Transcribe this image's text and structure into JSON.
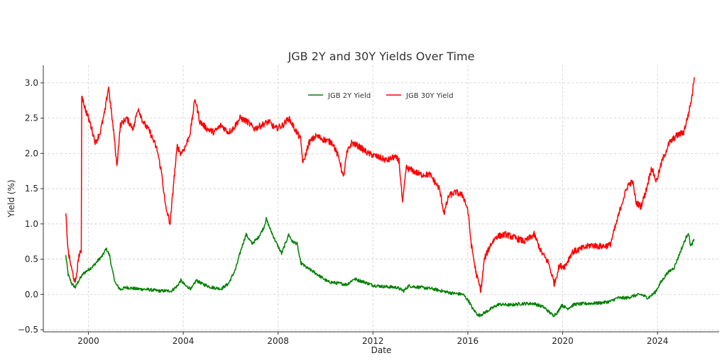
{
  "chart_data": {
    "type": "line",
    "title": "JGB 2Y and 30Y Yields Over Time",
    "xlabel": "Date",
    "ylabel": "Yield (%)",
    "xlim": [
      1998.1,
      2026.6
    ],
    "ylim": [
      -0.53,
      3.25
    ],
    "x_ticks": [
      2000,
      2004,
      2008,
      2012,
      2016,
      2020,
      2024
    ],
    "x_tick_labels": [
      "2000",
      "2004",
      "2008",
      "2012",
      "2016",
      "2020",
      "2024"
    ],
    "y_ticks": [
      -0.5,
      0.0,
      0.5,
      1.0,
      1.5,
      2.0,
      2.5,
      3.0
    ],
    "y_tick_labels": [
      "−0.5",
      "0.0",
      "0.5",
      "1.0",
      "1.5",
      "2.0",
      "2.5",
      "3.0"
    ],
    "grid": true,
    "legend_position": "top-center",
    "series": [
      {
        "name": "JGB 2Y Yield",
        "color": "#008000",
        "points": [
          [
            1999.05,
            0.55
          ],
          [
            1999.15,
            0.28
          ],
          [
            1999.3,
            0.15
          ],
          [
            1999.45,
            0.1
          ],
          [
            1999.6,
            0.2
          ],
          [
            1999.8,
            0.3
          ],
          [
            2000.0,
            0.35
          ],
          [
            2000.2,
            0.4
          ],
          [
            2000.4,
            0.48
          ],
          [
            2000.6,
            0.55
          ],
          [
            2000.75,
            0.65
          ],
          [
            2000.9,
            0.55
          ],
          [
            2001.0,
            0.35
          ],
          [
            2001.15,
            0.15
          ],
          [
            2001.35,
            0.07
          ],
          [
            2001.6,
            0.1
          ],
          [
            2002.0,
            0.08
          ],
          [
            2002.5,
            0.07
          ],
          [
            2003.0,
            0.05
          ],
          [
            2003.5,
            0.05
          ],
          [
            2003.75,
            0.12
          ],
          [
            2003.9,
            0.2
          ],
          [
            2004.1,
            0.12
          ],
          [
            2004.35,
            0.08
          ],
          [
            2004.55,
            0.2
          ],
          [
            2004.8,
            0.15
          ],
          [
            2005.2,
            0.1
          ],
          [
            2005.6,
            0.08
          ],
          [
            2005.9,
            0.15
          ],
          [
            2006.2,
            0.35
          ],
          [
            2006.45,
            0.65
          ],
          [
            2006.65,
            0.85
          ],
          [
            2006.9,
            0.72
          ],
          [
            2007.15,
            0.8
          ],
          [
            2007.4,
            0.95
          ],
          [
            2007.5,
            1.07
          ],
          [
            2007.7,
            0.9
          ],
          [
            2007.9,
            0.75
          ],
          [
            2008.15,
            0.58
          ],
          [
            2008.45,
            0.85
          ],
          [
            2008.6,
            0.75
          ],
          [
            2008.8,
            0.72
          ],
          [
            2008.95,
            0.45
          ],
          [
            2009.2,
            0.38
          ],
          [
            2009.5,
            0.32
          ],
          [
            2009.8,
            0.25
          ],
          [
            2010.1,
            0.18
          ],
          [
            2010.5,
            0.16
          ],
          [
            2010.9,
            0.14
          ],
          [
            2011.2,
            0.22
          ],
          [
            2011.6,
            0.18
          ],
          [
            2012.0,
            0.13
          ],
          [
            2012.5,
            0.11
          ],
          [
            2013.0,
            0.1
          ],
          [
            2013.3,
            0.05
          ],
          [
            2013.5,
            0.12
          ],
          [
            2014.0,
            0.1
          ],
          [
            2014.5,
            0.08
          ],
          [
            2014.9,
            0.05
          ],
          [
            2015.3,
            0.02
          ],
          [
            2015.8,
            0.0
          ],
          [
            2016.05,
            -0.1
          ],
          [
            2016.2,
            -0.2
          ],
          [
            2016.45,
            -0.3
          ],
          [
            2016.6,
            -0.28
          ],
          [
            2016.9,
            -0.22
          ],
          [
            2017.3,
            -0.14
          ],
          [
            2017.8,
            -0.15
          ],
          [
            2018.3,
            -0.13
          ],
          [
            2018.8,
            -0.13
          ],
          [
            2019.2,
            -0.18
          ],
          [
            2019.6,
            -0.3
          ],
          [
            2019.8,
            -0.25
          ],
          [
            2019.95,
            -0.15
          ],
          [
            2020.2,
            -0.2
          ],
          [
            2020.5,
            -0.14
          ],
          [
            2021.0,
            -0.13
          ],
          [
            2021.6,
            -0.12
          ],
          [
            2022.0,
            -0.1
          ],
          [
            2022.3,
            -0.05
          ],
          [
            2022.7,
            -0.05
          ],
          [
            2023.0,
            -0.02
          ],
          [
            2023.3,
            0.0
          ],
          [
            2023.6,
            -0.05
          ],
          [
            2023.9,
            0.03
          ],
          [
            2024.1,
            0.15
          ],
          [
            2024.4,
            0.3
          ],
          [
            2024.7,
            0.38
          ],
          [
            2024.9,
            0.55
          ],
          [
            2025.1,
            0.72
          ],
          [
            2025.3,
            0.88
          ],
          [
            2025.4,
            0.68
          ],
          [
            2025.55,
            0.78
          ]
        ]
      },
      {
        "name": "JGB 30Y Yield",
        "color": "#ff0000",
        "points": [
          [
            1999.05,
            1.13
          ],
          [
            1999.15,
            0.6
          ],
          [
            1999.3,
            0.35
          ],
          [
            1999.45,
            0.15
          ],
          [
            1999.6,
            0.55
          ],
          [
            1999.7,
            0.6
          ],
          [
            1999.72,
            2.84
          ],
          [
            1999.85,
            2.65
          ],
          [
            2000.1,
            2.4
          ],
          [
            2000.3,
            2.15
          ],
          [
            2000.5,
            2.3
          ],
          [
            2000.7,
            2.6
          ],
          [
            2000.85,
            2.95
          ],
          [
            2000.95,
            2.65
          ],
          [
            2001.1,
            2.2
          ],
          [
            2001.2,
            1.82
          ],
          [
            2001.35,
            2.4
          ],
          [
            2001.6,
            2.5
          ],
          [
            2001.9,
            2.35
          ],
          [
            2002.1,
            2.65
          ],
          [
            2002.3,
            2.45
          ],
          [
            2002.6,
            2.3
          ],
          [
            2002.9,
            2.05
          ],
          [
            2003.1,
            1.7
          ],
          [
            2003.25,
            1.25
          ],
          [
            2003.45,
            1.0
          ],
          [
            2003.6,
            1.6
          ],
          [
            2003.75,
            2.1
          ],
          [
            2003.9,
            2.0
          ],
          [
            2004.1,
            2.1
          ],
          [
            2004.3,
            2.3
          ],
          [
            2004.5,
            2.78
          ],
          [
            2004.7,
            2.45
          ],
          [
            2005.0,
            2.35
          ],
          [
            2005.3,
            2.3
          ],
          [
            2005.6,
            2.4
          ],
          [
            2005.9,
            2.3
          ],
          [
            2006.1,
            2.35
          ],
          [
            2006.4,
            2.5
          ],
          [
            2006.7,
            2.45
          ],
          [
            2007.0,
            2.35
          ],
          [
            2007.3,
            2.4
          ],
          [
            2007.6,
            2.45
          ],
          [
            2007.9,
            2.35
          ],
          [
            2008.2,
            2.4
          ],
          [
            2008.45,
            2.5
          ],
          [
            2008.7,
            2.35
          ],
          [
            2008.95,
            2.2
          ],
          [
            2009.05,
            1.85
          ],
          [
            2009.3,
            2.15
          ],
          [
            2009.6,
            2.25
          ],
          [
            2009.9,
            2.2
          ],
          [
            2010.3,
            2.15
          ],
          [
            2010.6,
            1.9
          ],
          [
            2010.75,
            1.65
          ],
          [
            2010.9,
            2.0
          ],
          [
            2011.1,
            2.15
          ],
          [
            2011.4,
            2.1
          ],
          [
            2011.8,
            2.0
          ],
          [
            2012.2,
            1.95
          ],
          [
            2012.6,
            1.9
          ],
          [
            2012.9,
            1.95
          ],
          [
            2013.1,
            1.9
          ],
          [
            2013.25,
            1.28
          ],
          [
            2013.4,
            1.8
          ],
          [
            2013.7,
            1.75
          ],
          [
            2014.0,
            1.7
          ],
          [
            2014.4,
            1.7
          ],
          [
            2014.8,
            1.5
          ],
          [
            2015.0,
            1.15
          ],
          [
            2015.2,
            1.4
          ],
          [
            2015.5,
            1.45
          ],
          [
            2015.8,
            1.4
          ],
          [
            2016.0,
            1.2
          ],
          [
            2016.15,
            0.7
          ],
          [
            2016.35,
            0.3
          ],
          [
            2016.55,
            0.05
          ],
          [
            2016.7,
            0.5
          ],
          [
            2016.95,
            0.7
          ],
          [
            2017.2,
            0.82
          ],
          [
            2017.6,
            0.85
          ],
          [
            2018.0,
            0.8
          ],
          [
            2018.4,
            0.75
          ],
          [
            2018.8,
            0.85
          ],
          [
            2019.1,
            0.6
          ],
          [
            2019.4,
            0.45
          ],
          [
            2019.65,
            0.15
          ],
          [
            2019.85,
            0.4
          ],
          [
            2020.1,
            0.4
          ],
          [
            2020.4,
            0.6
          ],
          [
            2020.8,
            0.65
          ],
          [
            2021.2,
            0.7
          ],
          [
            2021.6,
            0.68
          ],
          [
            2022.0,
            0.7
          ],
          [
            2022.3,
            1.05
          ],
          [
            2022.5,
            1.3
          ],
          [
            2022.75,
            1.55
          ],
          [
            2022.95,
            1.6
          ],
          [
            2023.1,
            1.3
          ],
          [
            2023.3,
            1.25
          ],
          [
            2023.5,
            1.45
          ],
          [
            2023.75,
            1.8
          ],
          [
            2023.95,
            1.6
          ],
          [
            2024.2,
            1.9
          ],
          [
            2024.5,
            2.15
          ],
          [
            2024.8,
            2.25
          ],
          [
            2025.1,
            2.3
          ],
          [
            2025.3,
            2.55
          ],
          [
            2025.45,
            2.8
          ],
          [
            2025.55,
            3.08
          ]
        ]
      }
    ]
  }
}
